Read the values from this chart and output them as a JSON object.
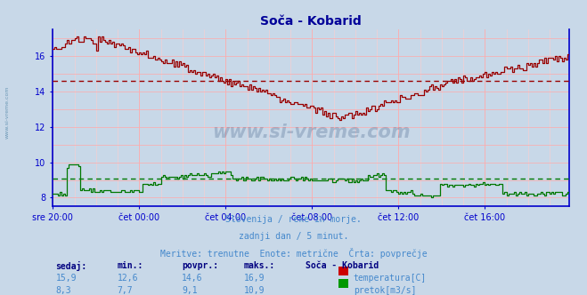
{
  "title": "Soča - Kobarid",
  "title_color": "#000099",
  "bg_color": "#c8d8e8",
  "plot_bg_color": "#c8d8e8",
  "grid_color_major": "#ffaaaa",
  "grid_color_minor": "#ffcccc",
  "axis_color": "#0000cc",
  "tick_color": "#0000cc",
  "watermark": "www.si-vreme.com",
  "subtitle1": "Slovenija / reke in morje.",
  "subtitle2": "zadnji dan / 5 minut.",
  "subtitle3": "Meritve: trenutne  Enote: metrične  Črta: povprečje",
  "subtitle_color": "#4488cc",
  "x_tick_labels": [
    "sre 20:00",
    "čet 00:00",
    "čet 04:00",
    "čet 08:00",
    "čet 12:00",
    "čet 16:00"
  ],
  "x_tick_positions": [
    0,
    48,
    96,
    144,
    192,
    240
  ],
  "ylim": [
    7.5,
    17.5
  ],
  "yticks": [
    8,
    10,
    12,
    14,
    16
  ],
  "n_points": 288,
  "temp_avg": 14.6,
  "flow_avg": 9.1,
  "temp_color": "#990000",
  "flow_color": "#007700",
  "legend_title": "Soča - Kobarid",
  "legend_color": "#000080",
  "table_headers": [
    "sedaj:",
    "min.:",
    "povpr.:",
    "maks.:"
  ],
  "table_temp": [
    "15,9",
    "12,6",
    "14,6",
    "16,9"
  ],
  "table_flow": [
    "8,3",
    "7,7",
    "9,1",
    "10,9"
  ],
  "table_color": "#4488cc",
  "table_header_color": "#000080",
  "sidebar_text": "www.si-vreme.com"
}
